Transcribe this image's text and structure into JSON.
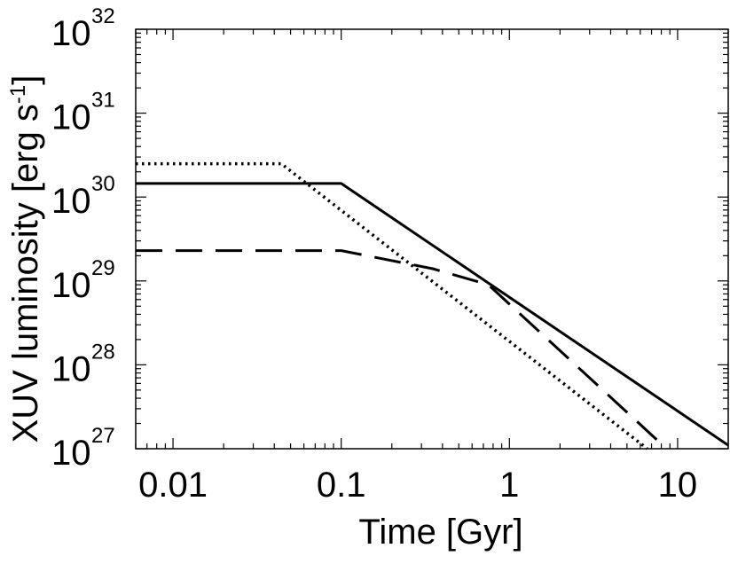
{
  "chart_data": {
    "type": "line",
    "xlabel": "Time [Gyr]",
    "ylabel": "XUV luminosity  [erg s",
    "ylabel_unit_exp": "-1",
    "ylabel_close": "]",
    "xscale": "log",
    "yscale": "log",
    "xlim": [
      0.006,
      20
    ],
    "ylim": [
      1e+27,
      1e+32
    ],
    "grid": false,
    "x_ticks": [
      {
        "value": 0.01,
        "label": "0.01"
      },
      {
        "value": 0.1,
        "label": "0.1"
      },
      {
        "value": 1,
        "label": "1"
      },
      {
        "value": 10,
        "label": "10"
      }
    ],
    "y_ticks": [
      {
        "value": 1e+27,
        "base": "10",
        "exp": "27"
      },
      {
        "value": 1e+28,
        "base": "10",
        "exp": "28"
      },
      {
        "value": 1e+29,
        "base": "10",
        "exp": "29"
      },
      {
        "value": 1e+30,
        "base": "10",
        "exp": "30"
      },
      {
        "value": 1e+31,
        "base": "10",
        "exp": "31"
      },
      {
        "value": 1e+32,
        "base": "10",
        "exp": "32"
      }
    ],
    "series": [
      {
        "style": "solid",
        "x": [
          0.006,
          0.1,
          20
        ],
        "y": [
          1.45e+30,
          1.45e+30,
          1.1e+27
        ]
      },
      {
        "style": "dotted",
        "x": [
          0.006,
          0.044,
          6.6
        ],
        "y": [
          2.5e+30,
          2.5e+30,
          1e+27
        ]
      },
      {
        "style": "dashed",
        "x": [
          0.006,
          0.1,
          0.35,
          0.75,
          8.6
        ],
        "y": [
          2.3e+29,
          2.3e+29,
          1.4e+29,
          9e+28,
          1e+27
        ]
      }
    ]
  }
}
